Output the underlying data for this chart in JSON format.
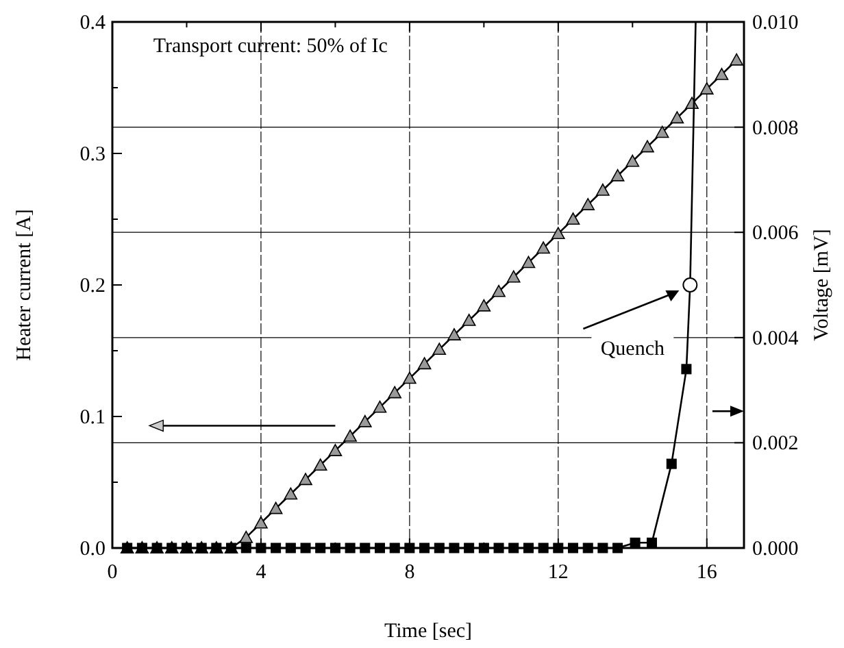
{
  "chart_data": {
    "type": "line",
    "xlabel": "Time [sec]",
    "ylabel": "Heater current [A]",
    "y2label": "Voltage [mV]",
    "annotations": [
      "Transport current: 50% of Ic",
      "Quench"
    ],
    "xlim": [
      0,
      17
    ],
    "xticks": [
      0,
      {
        "value": 2,
        "label": null
      },
      4,
      {
        "value": 6,
        "label": null
      },
      8,
      {
        "value": 10,
        "label": null
      },
      12,
      {
        "value": 14,
        "label": null
      },
      16
    ],
    "ylim": [
      0,
      0.4
    ],
    "yticks": [
      {
        "value": 0,
        "label": "0.0"
      },
      {
        "value": 0.05,
        "label": null
      },
      0.1,
      {
        "value": 0.15,
        "label": null
      },
      0.2,
      {
        "value": 0.25,
        "label": null
      },
      0.3,
      {
        "value": 0.35,
        "label": null
      },
      0.4
    ],
    "y2lim": [
      0,
      0.01
    ],
    "y2ticks": [
      {
        "value": 0,
        "label": "0.000"
      },
      {
        "value": 0.002,
        "label": "0.002"
      },
      {
        "value": 0.004,
        "label": "0.004"
      },
      {
        "value": 0.006,
        "label": "0.006"
      },
      {
        "value": 0.008,
        "label": "0.008"
      },
      {
        "value": 0.01,
        "label": "0.010"
      }
    ],
    "grid": true,
    "line_style": "solid",
    "series": [
      {
        "marker": "triangle",
        "color": "#9a9a9a",
        "x": [
          0.4,
          0.8,
          1.2,
          1.6,
          2.0,
          2.4,
          2.8,
          3.2,
          3.6,
          4.0,
          4.4,
          4.8,
          5.2,
          5.6,
          6.0,
          6.4,
          6.8,
          7.2,
          7.6,
          8.0,
          8.4,
          8.8,
          9.2,
          9.6,
          10.0,
          10.4,
          10.8,
          11.2,
          11.6,
          12.0,
          12.4,
          12.8,
          13.2,
          13.6,
          14.0,
          14.4,
          14.8,
          15.2,
          15.6,
          16.0,
          16.4,
          16.8
        ],
        "values": [
          0,
          0,
          0,
          0,
          0,
          0,
          0,
          0,
          0.008,
          0.019,
          0.03,
          0.041,
          0.052,
          0.063,
          0.074,
          0.085,
          0.096,
          0.107,
          0.118,
          0.129,
          0.14,
          0.151,
          0.162,
          0.173,
          0.184,
          0.195,
          0.206,
          0.217,
          0.228,
          0.239,
          0.25,
          0.261,
          0.272,
          0.283,
          0.294,
          0.305,
          0.316,
          0.327,
          0.338,
          0.349,
          0.36,
          0.371
        ]
      },
      {
        "axis": "y2",
        "marker": "square",
        "color": "#000000",
        "x": [
          0.4,
          0.8,
          1.2,
          1.6,
          2.0,
          2.4,
          2.8,
          3.2,
          3.6,
          4.0,
          4.4,
          4.8,
          5.2,
          5.6,
          6.0,
          6.4,
          6.8,
          7.2,
          7.6,
          8.0,
          8.4,
          8.8,
          9.2,
          9.6,
          10.0,
          10.4,
          10.8,
          11.2,
          11.6,
          12.0,
          12.4,
          12.8,
          13.2,
          13.6,
          14.07,
          14.52,
          15.05,
          15.45
        ],
        "values": [
          0,
          0,
          0,
          0,
          0,
          0,
          0,
          0,
          0,
          0,
          0,
          0,
          0,
          0,
          0,
          0,
          0,
          0,
          0,
          0,
          0,
          0,
          0,
          0,
          0,
          0,
          0,
          0,
          0,
          0,
          0,
          0,
          0,
          0,
          0.0001,
          0.0001,
          0.0016,
          0.0034
        ]
      },
      {
        "axis": "y2",
        "marker": "none",
        "color": "#000000",
        "x": [
          15.45,
          15.55,
          15.7
        ],
        "values": [
          0.0034,
          0.005,
          0.01
        ]
      },
      {
        "type": "scatter",
        "axis": "y2",
        "marker": "circle",
        "color": "#ffffff",
        "x": [
          15.55
        ],
        "values": [
          0.005
        ]
      }
    ]
  }
}
